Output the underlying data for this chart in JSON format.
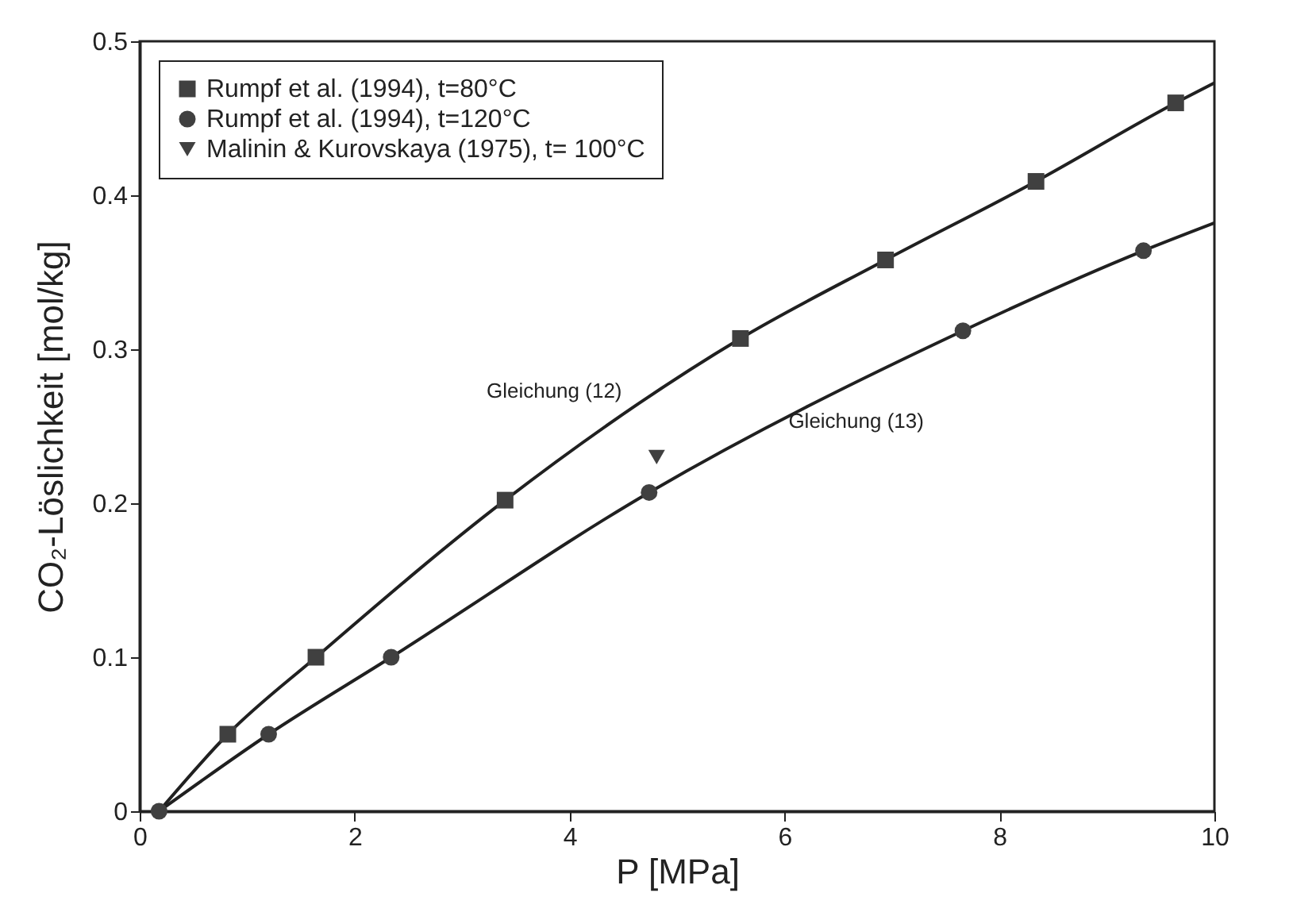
{
  "chart_data": {
    "type": "scatter",
    "xlabel": "P [MPa]",
    "ylabel": "CO₂-Löslichkeit [mol/kg]",
    "xlim": [
      0,
      10
    ],
    "xticks": [
      0,
      2,
      4,
      6,
      8,
      10
    ],
    "ylim": [
      0,
      0.5
    ],
    "yticks": [
      0,
      0.1,
      0.2,
      0.3,
      0.4,
      0.5
    ],
    "grid": false,
    "legend": "top left",
    "series": [
      {
        "name": "Rumpf et al. (1994), t=80°C",
        "marker": "square",
        "color": "#404040",
        "x": [
          0.82,
          1.64,
          3.4,
          5.59,
          6.94,
          8.34,
          9.64
        ],
        "values": [
          0.05,
          0.1,
          0.202,
          0.307,
          0.358,
          0.409,
          0.46
        ]
      },
      {
        "name": "Rumpf et al. (1994), t=120°C",
        "marker": "circle",
        "color": "#404040",
        "x": [
          0.18,
          1.2,
          2.34,
          4.74,
          7.66,
          9.34
        ],
        "values": [
          0,
          0.05,
          0.1,
          0.207,
          0.312,
          0.364
        ]
      },
      {
        "name": "Malinin & Kurovskaya (1975), t= 100°C",
        "marker": "triangle",
        "color": "#404040",
        "x": [
          4.81
        ],
        "values": [
          0.23
        ]
      },
      {
        "type": "line",
        "color": "#202020",
        "x": [
          0.18,
          0.82,
          1.64,
          3.4,
          5.59,
          6.94,
          8.34,
          9.64,
          10
        ],
        "values": [
          0,
          0.05,
          0.1,
          0.202,
          0.307,
          0.358,
          0.409,
          0.46,
          0.473
        ]
      },
      {
        "type": "line",
        "color": "#202020",
        "x": [
          0.18,
          1.2,
          2.34,
          4.74,
          7.66,
          9.34,
          10
        ],
        "values": [
          0,
          0.05,
          0.1,
          0.207,
          0.312,
          0.364,
          0.382
        ]
      }
    ],
    "annotations": [
      {
        "text": "Gleichung (12)",
        "x": 4.93,
        "y": 0.277
      },
      {
        "text": "Gleichung (13)",
        "x": 5.83,
        "y": 0.245
      }
    ]
  }
}
